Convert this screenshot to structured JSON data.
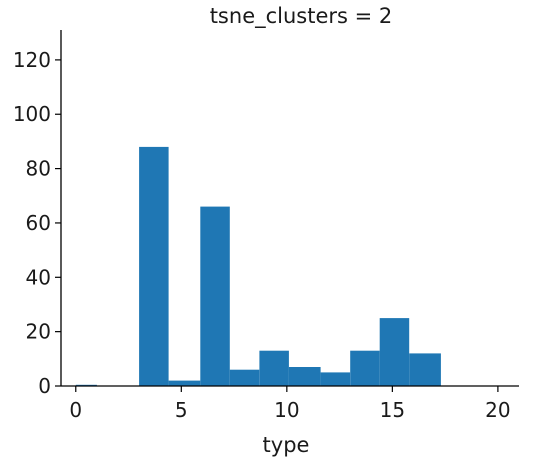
{
  "chart_data": {
    "type": "bar",
    "title": "tsne_clusters = 2",
    "xlabel": "type",
    "ylabel": "",
    "xlim": [
      -0.7,
      21.0
    ],
    "ylim": [
      0,
      131
    ],
    "x_ticks": [
      0,
      5,
      10,
      15,
      20
    ],
    "y_ticks": [
      0,
      20,
      40,
      60,
      80,
      100,
      120
    ],
    "bar_color": "#1f77b4",
    "grid": false,
    "bins": [
      {
        "x0": 0.0,
        "x1": 1.0,
        "value": 0
      },
      {
        "x0": 3.0,
        "x1": 4.4,
        "value": 88
      },
      {
        "x0": 4.4,
        "x1": 5.9,
        "value": 2
      },
      {
        "x0": 5.9,
        "x1": 7.3,
        "value": 66
      },
      {
        "x0": 7.3,
        "x1": 8.7,
        "value": 6
      },
      {
        "x0": 8.7,
        "x1": 10.1,
        "value": 13
      },
      {
        "x0": 10.1,
        "x1": 11.6,
        "value": 7
      },
      {
        "x0": 11.6,
        "x1": 13.0,
        "value": 5
      },
      {
        "x0": 13.0,
        "x1": 14.4,
        "value": 13
      },
      {
        "x0": 14.4,
        "x1": 15.8,
        "value": 25
      },
      {
        "x0": 15.8,
        "x1": 17.3,
        "value": 12
      }
    ]
  }
}
